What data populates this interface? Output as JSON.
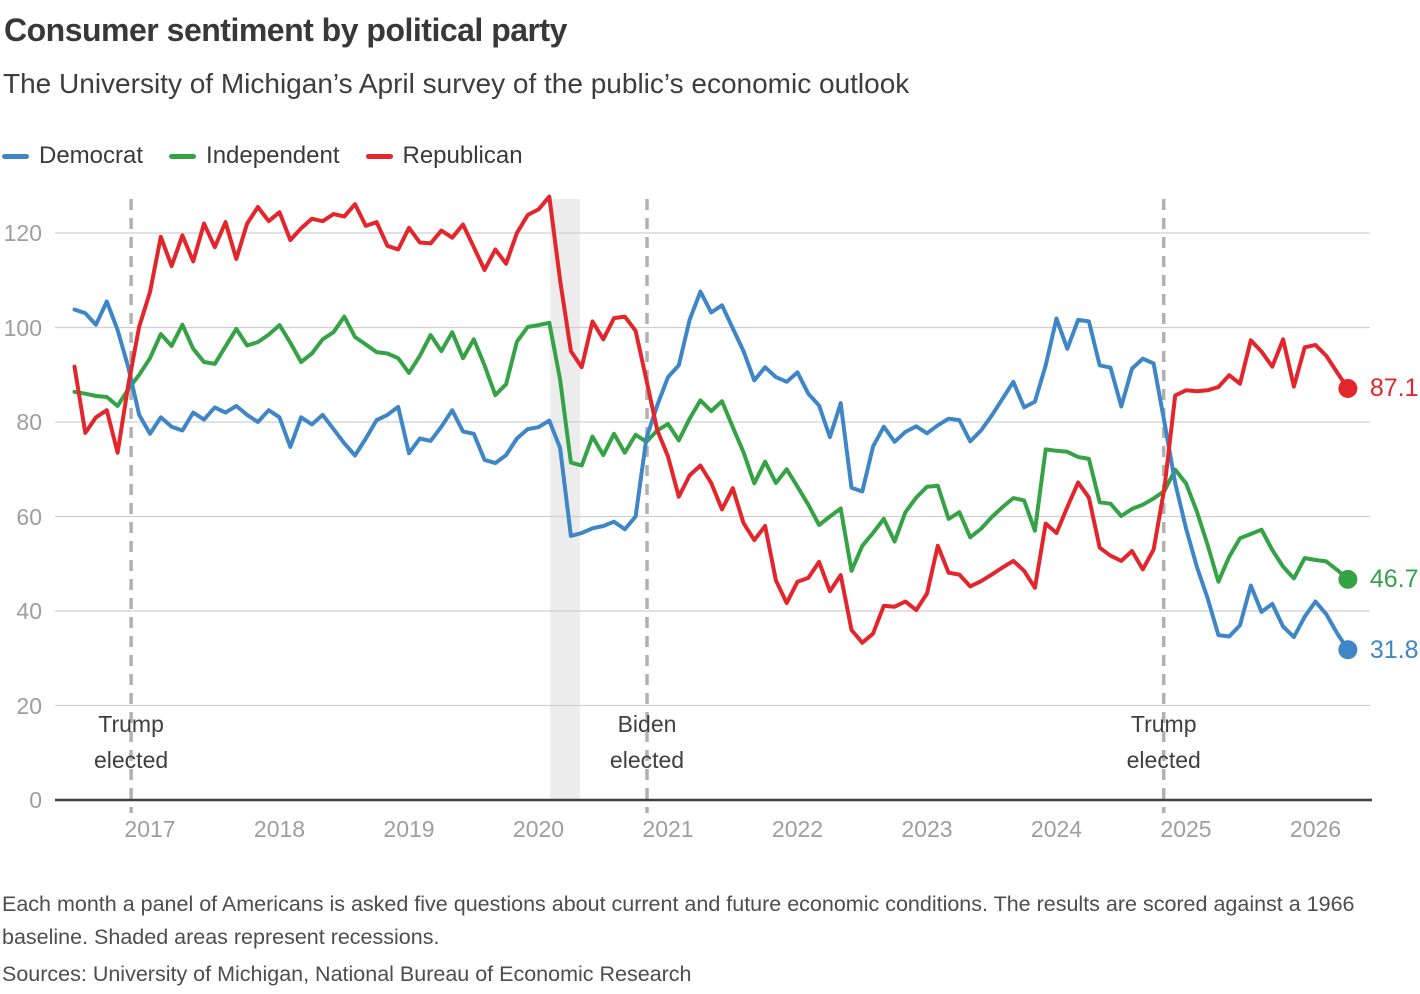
{
  "title": "Consumer sentiment by political party",
  "subtitle": "The University of Michigan’s April survey of the public’s economic outlook",
  "footnote": "Each month a panel of Americans is asked five questions about current and future economic conditions. The results are scored against a 1966 baseline. Shaded areas represent recessions.",
  "sources": "Sources: University of Michigan, National Bureau of Economic Research",
  "chart_data": {
    "type": "line",
    "frequency": "monthly",
    "x_start": {
      "year": 2016,
      "month": 6
    },
    "x_end": {
      "year": 2026,
      "month": 4
    },
    "ylim": [
      0,
      132
    ],
    "yticks": [
      0,
      20,
      40,
      60,
      80,
      100,
      120
    ],
    "xticks": [
      2017,
      2018,
      2019,
      2020,
      2021,
      2022,
      2023,
      2024,
      2025,
      2026
    ],
    "grid": true,
    "legend_position": "top-left",
    "events": [
      {
        "lines": [
          "Trump",
          "elected"
        ],
        "t": 2016.854
      },
      {
        "lines": [
          "Biden",
          "elected"
        ],
        "t": 2020.838
      },
      {
        "lines": [
          "Trump",
          "elected"
        ],
        "t": 2024.828
      }
    ],
    "recessions": [
      {
        "start": 2020.09,
        "end": 2020.32
      }
    ],
    "series": [
      {
        "name": "Democrat",
        "color": "#3e86c6",
        "end_label": "31.8",
        "values": [
          103.8,
          103.0,
          100.6,
          105.5,
          99.5,
          91.5,
          81.5,
          77.5,
          81.0,
          79.0,
          78.2,
          82.0,
          80.5,
          83.1,
          82.0,
          83.4,
          81.5,
          80.0,
          82.5,
          81.0,
          74.7,
          81.0,
          79.5,
          81.5,
          78.5,
          75.5,
          72.9,
          76.5,
          80.4,
          81.5,
          83.2,
          73.4,
          76.5,
          76.0,
          79.0,
          82.5,
          78.0,
          77.5,
          72.0,
          71.3,
          73.0,
          76.5,
          78.5,
          78.9,
          80.3,
          74.5,
          55.9,
          56.5,
          57.5,
          58.0,
          58.9,
          57.3,
          60.0,
          76.6,
          83.5,
          89.5,
          92.0,
          101.6,
          107.6,
          103.2,
          104.7,
          99.8,
          95.0,
          88.8,
          91.6,
          89.5,
          88.5,
          90.5,
          86.0,
          83.5,
          76.8,
          84.0,
          66.1,
          65.3,
          74.8,
          79.0,
          75.8,
          77.9,
          79.1,
          77.6,
          79.3,
          80.7,
          80.4,
          75.9,
          78.2,
          81.4,
          84.9,
          88.5,
          83.1,
          84.3,
          92.0,
          101.9,
          95.5,
          101.6,
          101.3,
          92.0,
          91.5,
          83.3,
          91.3,
          93.4,
          92.4,
          80.0,
          67.1,
          57.5,
          49.4,
          42.7,
          34.9,
          34.6,
          37.0,
          45.4,
          39.8,
          41.5,
          36.7,
          34.5,
          38.8,
          42.0,
          39.3,
          35.3,
          31.8
        ]
      },
      {
        "name": "Independent",
        "color": "#35a345",
        "end_label": "46.7",
        "values": [
          86.4,
          86.0,
          85.5,
          85.3,
          83.4,
          87.0,
          90.0,
          93.5,
          98.6,
          96.1,
          100.6,
          95.5,
          92.7,
          92.3,
          96.0,
          99.7,
          96.2,
          96.9,
          98.5,
          100.5,
          96.8,
          92.7,
          94.5,
          97.5,
          99.0,
          102.3,
          98.0,
          96.4,
          94.8,
          94.5,
          93.5,
          90.4,
          94.0,
          98.4,
          95.0,
          99.0,
          93.5,
          97.5,
          92.0,
          85.7,
          88.0,
          97.0,
          100.1,
          100.5,
          101.0,
          89.0,
          71.4,
          70.8,
          76.9,
          73.0,
          77.5,
          73.5,
          77.3,
          75.8,
          78.2,
          79.6,
          76.1,
          80.7,
          84.6,
          82.3,
          84.4,
          78.9,
          73.6,
          67.0,
          71.6,
          67.1,
          70.0,
          66.3,
          62.5,
          58.2,
          60.0,
          61.7,
          48.5,
          53.8,
          56.5,
          59.5,
          54.7,
          60.9,
          64.0,
          66.3,
          66.5,
          59.5,
          60.9,
          55.6,
          57.4,
          59.9,
          62.0,
          63.9,
          63.4,
          57.0,
          74.2,
          73.9,
          73.7,
          72.6,
          72.2,
          63.0,
          62.7,
          60.1,
          61.6,
          62.5,
          63.8,
          65.4,
          69.9,
          67.0,
          61.1,
          54.0,
          46.2,
          51.5,
          55.4,
          56.3,
          57.2,
          52.9,
          49.4,
          46.9,
          51.2,
          50.8,
          50.5,
          48.7,
          46.7
        ]
      },
      {
        "name": "Republican",
        "color": "#e3252c",
        "end_label": "87.1",
        "values": [
          91.7,
          77.7,
          81.0,
          82.5,
          73.5,
          88.0,
          100.2,
          107.5,
          119.2,
          113.0,
          119.5,
          114.0,
          122.0,
          117.0,
          122.3,
          114.5,
          122.0,
          125.5,
          122.5,
          124.4,
          118.5,
          121.0,
          123.0,
          122.5,
          124.0,
          123.5,
          126.1,
          121.5,
          122.3,
          117.3,
          116.5,
          121.1,
          118.0,
          117.8,
          120.5,
          119.0,
          121.8,
          117.0,
          112.2,
          116.5,
          113.5,
          120.0,
          123.8,
          125.0,
          127.7,
          110.0,
          95.0,
          91.6,
          101.3,
          97.5,
          102.0,
          102.3,
          99.3,
          88.9,
          78.3,
          72.7,
          64.2,
          68.7,
          70.8,
          67.1,
          61.5,
          66.0,
          58.6,
          55.0,
          58.0,
          46.5,
          41.7,
          46.2,
          47.0,
          50.4,
          44.2,
          47.6,
          36.0,
          33.3,
          35.2,
          41.1,
          40.9,
          42.0,
          40.2,
          43.7,
          53.8,
          48.1,
          47.7,
          45.2,
          46.3,
          47.7,
          49.2,
          50.6,
          48.5,
          44.9,
          58.5,
          56.5,
          62.0,
          67.2,
          64.0,
          53.4,
          51.7,
          50.6,
          52.7,
          48.8,
          53.0,
          66.0,
          85.6,
          86.7,
          86.5,
          86.7,
          87.4,
          89.9,
          88.1,
          97.3,
          94.9,
          91.7,
          97.5,
          87.5,
          95.8,
          96.3,
          94.0,
          90.5,
          87.1
        ]
      }
    ]
  }
}
